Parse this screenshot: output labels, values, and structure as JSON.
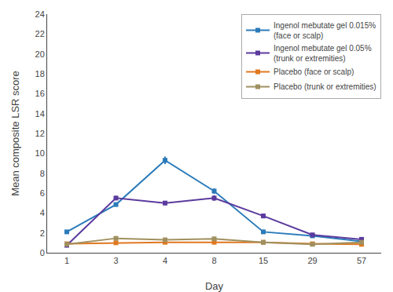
{
  "chart_data": {
    "type": "line",
    "categories": [
      "1",
      "3",
      "4",
      "8",
      "15",
      "29",
      "57"
    ],
    "series": [
      {
        "name": "Ingenol mebutate gel 0.015%\n(face or scalp)",
        "color": "#2b7bba",
        "values": [
          2.1,
          4.85,
          9.3,
          6.2,
          2.1,
          1.7,
          1.15
        ],
        "errors": [
          0.15,
          0.2,
          0.38,
          0.28,
          0.2,
          0.15,
          0.1
        ]
      },
      {
        "name": "Ingenol mebutate gel 0.05%\n(trunk or extremities)",
        "color": "#5b3a9e",
        "values": [
          0.75,
          5.5,
          5.0,
          5.5,
          3.7,
          1.8,
          1.35
        ],
        "errors": [
          0.1,
          0.22,
          0.22,
          0.28,
          0.22,
          0.12,
          0.1
        ]
      },
      {
        "name": "Placebo (face or scalp)",
        "color": "#e07820",
        "values": [
          0.9,
          1.0,
          1.05,
          1.05,
          1.05,
          0.9,
          0.85
        ],
        "errors": [
          0.05,
          0.07,
          0.07,
          0.07,
          0.07,
          0.05,
          0.05
        ]
      },
      {
        "name": "Placebo (trunk or extremities)",
        "color": "#a09060",
        "values": [
          0.85,
          1.45,
          1.3,
          1.4,
          1.05,
          0.85,
          1.05
        ],
        "errors": [
          0.05,
          0.1,
          0.08,
          0.09,
          0.07,
          0.05,
          0.06
        ]
      }
    ],
    "x_label": "Day",
    "y_label": "Mean composite LSR score",
    "ylim": [
      0,
      24
    ],
    "yticks": [
      0,
      2,
      4,
      6,
      8,
      10,
      12,
      14,
      16,
      18,
      20,
      22,
      24
    ],
    "marker": "square",
    "line_style": "solid",
    "grid": false,
    "legend": "upper right"
  }
}
